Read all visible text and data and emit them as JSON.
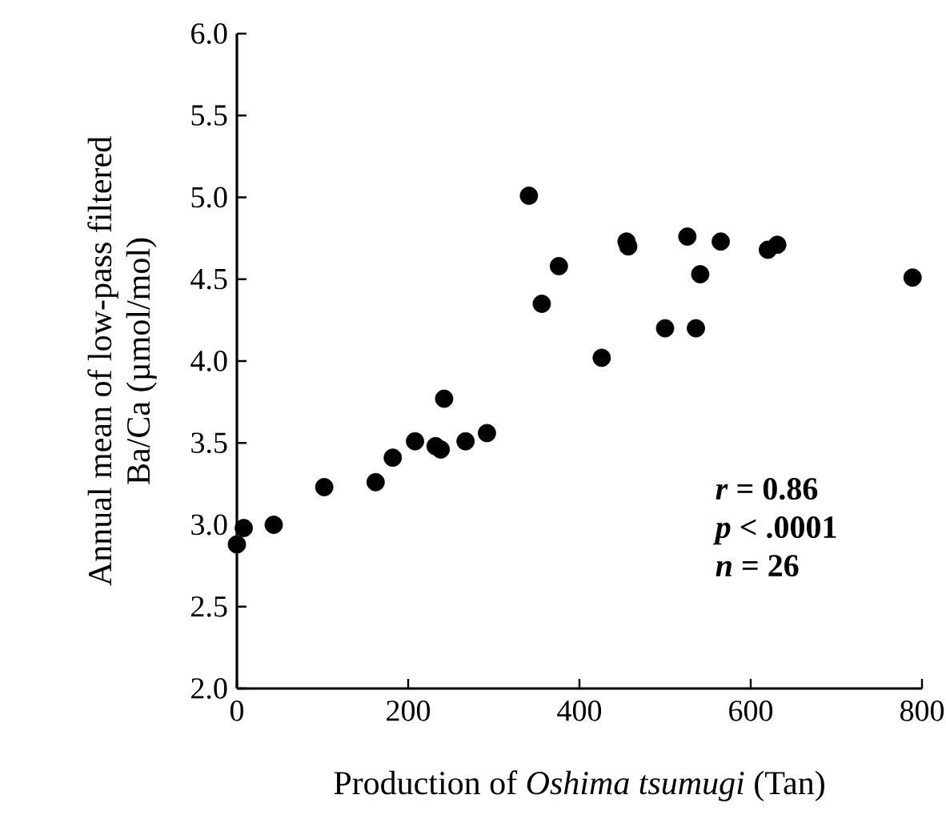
{
  "chart_data": {
    "type": "scatter",
    "xlabel": "Production of *Oshima tsumugi* (Tan)",
    "ylabel": "Annual mean of low-pass filtered Ba/Ca (µmol/mol)",
    "series": [
      {
        "color": "#000000",
        "x": [
          0,
          8,
          43,
          102,
          162,
          182,
          208,
          232,
          238,
          242,
          267,
          292,
          341,
          356,
          376,
          426,
          455,
          457,
          526,
          565,
          541,
          500,
          536,
          620,
          631,
          789
        ],
        "values": [
          2.88,
          2.98,
          3.0,
          3.23,
          3.26,
          3.41,
          3.51,
          3.48,
          3.46,
          3.77,
          3.51,
          3.56,
          5.01,
          4.35,
          4.58,
          4.02,
          4.73,
          4.7,
          4.76,
          4.73,
          4.53,
          4.2,
          4.2,
          4.68,
          4.71,
          4.51
        ]
      }
    ],
    "xlim": [
      0,
      800
    ],
    "xticks": [
      0,
      200,
      400,
      600,
      800
    ],
    "ylim": [
      2,
      6
    ],
    "yticks": [
      {
        "value": 2,
        "label": "2.0"
      },
      {
        "value": 2.5,
        "label": "2.5"
      },
      {
        "value": 3,
        "label": "3.0"
      },
      {
        "value": 3.5,
        "label": "3.5"
      },
      {
        "value": 4,
        "label": "4.0"
      },
      {
        "value": 4.5,
        "label": "4.5"
      },
      {
        "value": 5,
        "label": "5.0"
      },
      {
        "value": 5.5,
        "label": "5.5"
      },
      {
        "value": 6,
        "label": "6.0"
      }
    ],
    "annotations": [
      "*r* = 0.86",
      "*p* < .0001",
      "*n* = 26"
    ],
    "marker": "circle"
  }
}
